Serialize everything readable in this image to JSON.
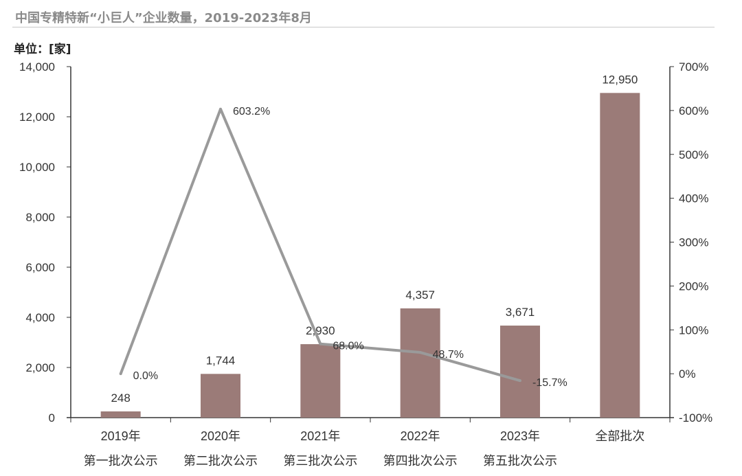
{
  "chart_data": {
    "type": "bar+line",
    "title": "中国专精特新“小巨人”企业数量，2019-2023年8月",
    "unit_label": "单位：[家]",
    "categories": [
      [
        "2019年",
        "第一批次公示"
      ],
      [
        "2020年",
        "第二批次公示"
      ],
      [
        "2021年",
        "第三批次公示"
      ],
      [
        "2022年",
        "第四批次公示"
      ],
      [
        "2023年",
        "第五批次公示"
      ],
      [
        "全部批次",
        ""
      ]
    ],
    "bar_series": {
      "values": [
        248,
        1744,
        2930,
        4357,
        3671,
        12950
      ],
      "labels": [
        "248",
        "1,744",
        "2,930",
        "4,357",
        "3,671",
        "12,950"
      ],
      "color": "#9b7b78",
      "axis": "left"
    },
    "line_series": {
      "values": [
        0.0,
        603.2,
        68.0,
        48.7,
        -15.7
      ],
      "labels": [
        "0.0%",
        "603.2%",
        "68.0%",
        "48.7%",
        "-15.7%"
      ],
      "color": "#9a9a9a",
      "axis": "right"
    },
    "left_axis": {
      "ylim": [
        0,
        14000
      ],
      "ticks": [
        "0",
        "2,000",
        "4,000",
        "6,000",
        "8,000",
        "10,000",
        "12,000",
        "14,000"
      ]
    },
    "right_axis": {
      "ylim": [
        -100,
        700
      ],
      "ticks": [
        "-100%",
        "0%",
        "100%",
        "200%",
        "300%",
        "400%",
        "500%",
        "600%",
        "700%"
      ]
    },
    "grid": false,
    "legend": "none"
  }
}
